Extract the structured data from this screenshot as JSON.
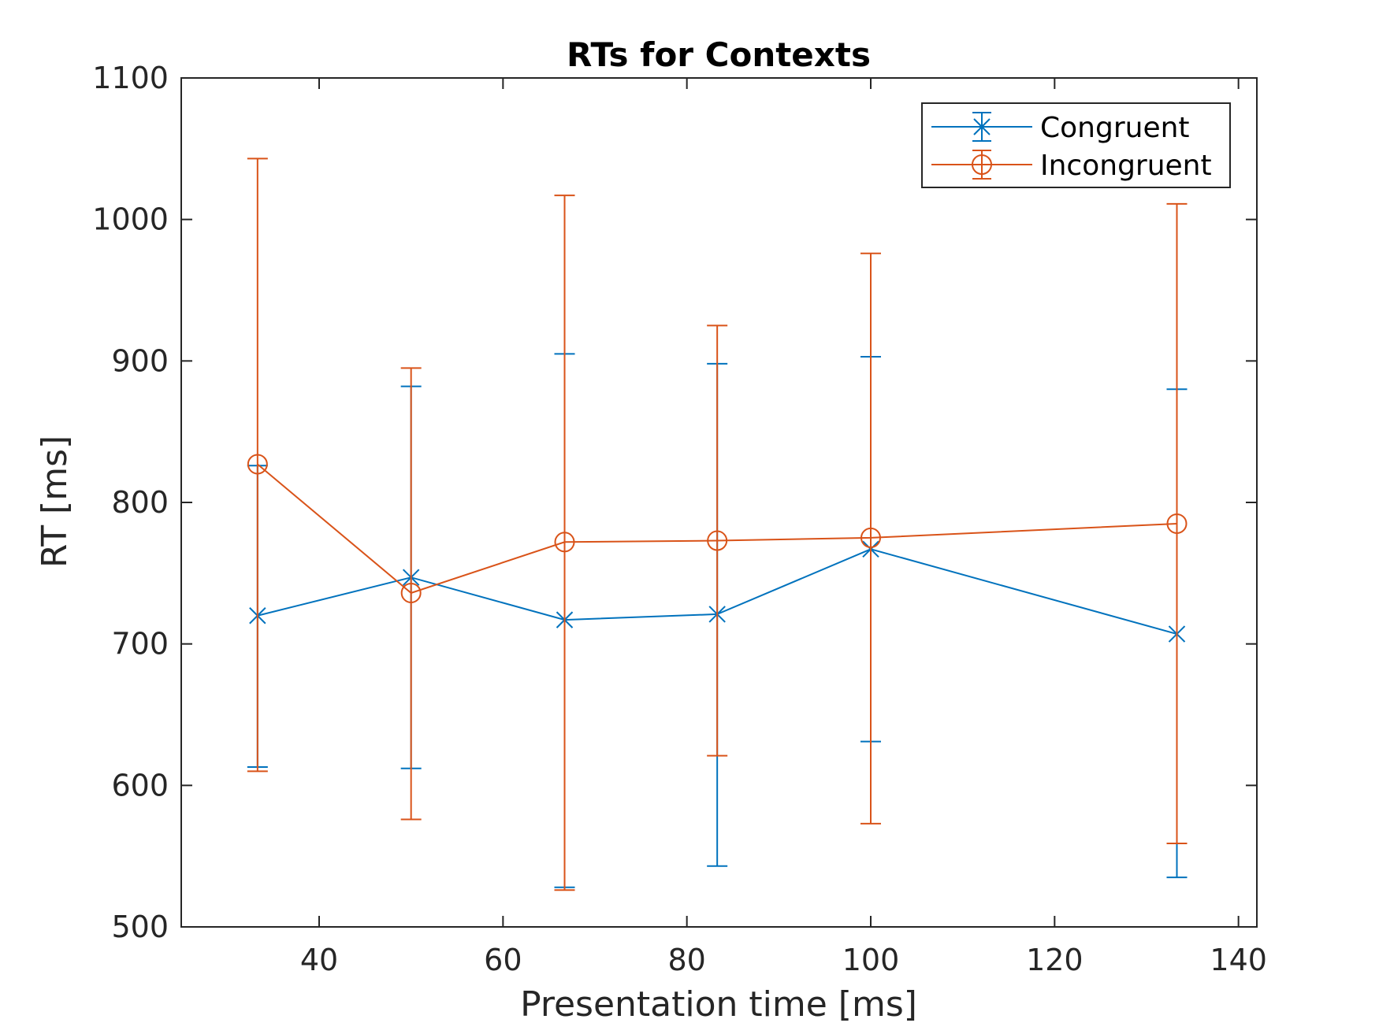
{
  "chart_data": {
    "type": "line",
    "title": "RTs for Contexts",
    "xlabel": "Presentation time [ms]",
    "ylabel": "RT [ms]",
    "xlim": [
      25,
      142
    ],
    "ylim": [
      500,
      1100
    ],
    "xticks": [
      40,
      60,
      80,
      100,
      120,
      140
    ],
    "yticks": [
      500,
      600,
      700,
      800,
      900,
      1000,
      1100
    ],
    "grid": false,
    "legend_position": "top-right",
    "series": [
      {
        "name": "Congruent",
        "color": "#0072BD",
        "marker": "x",
        "x": [
          33.3,
          50,
          66.7,
          83.3,
          100,
          133.3
        ],
        "y": [
          720,
          747,
          717,
          721,
          767,
          707
        ],
        "err_low": [
          613,
          612,
          528,
          543,
          631,
          535
        ],
        "err_high": [
          826,
          882,
          905,
          898,
          903,
          880
        ]
      },
      {
        "name": "Incongruent",
        "color": "#D95319",
        "marker": "o",
        "x": [
          33.3,
          50,
          66.7,
          83.3,
          100,
          133.3
        ],
        "y": [
          827,
          736,
          772,
          773,
          775,
          785
        ],
        "err_low": [
          610,
          576,
          526,
          621,
          573,
          559
        ],
        "err_high": [
          1043,
          895,
          1017,
          925,
          976,
          1011
        ]
      }
    ]
  }
}
